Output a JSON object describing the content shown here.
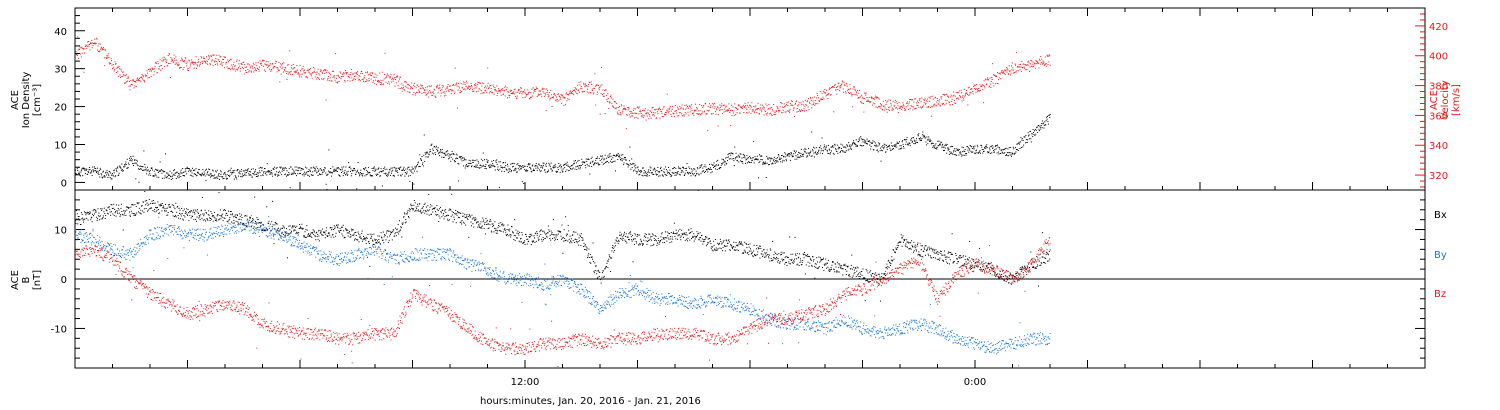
{
  "colors": {
    "black": "#000000",
    "red": "#e31a1c",
    "blue": "#1f78d1",
    "background": "#ffffff"
  },
  "x_axis": {
    "title": "hours:minutes, Jan. 20, 2016 - Jan. 21, 2016",
    "tick_labels": [
      "12:00",
      "0:00"
    ]
  },
  "chart_data": [
    {
      "type": "scatter",
      "panel": "top",
      "left_axis_label": [
        "ACE",
        "Ion Density",
        "[cm⁻³]"
      ],
      "right_axis_label": [
        "ACE",
        "Velocity",
        "[km/s]"
      ],
      "x_range_hours": [
        0,
        36
      ],
      "left_ylim": [
        -2,
        46
      ],
      "right_ylim": [
        310,
        432
      ],
      "left_ticks": [
        0,
        10,
        20,
        30,
        40
      ],
      "right_ticks": [
        320,
        340,
        360,
        380,
        400,
        420
      ],
      "series": [
        {
          "axis": "left",
          "color": "#000000",
          "x": [
            0,
            0.5,
            1.0,
            1.5,
            2.0,
            2.5,
            3.0,
            4.0,
            5.0,
            6.0,
            7.0,
            8.0,
            8.5,
            9.0,
            9.5,
            10.0,
            10.5,
            11.0,
            11.5,
            12.0,
            12.5,
            13.0,
            13.5,
            14.0,
            14.5,
            15.0,
            15.5,
            16.0,
            16.5,
            17.0,
            17.5,
            18.0,
            18.5,
            19.0,
            19.5,
            20.0,
            20.5,
            21.0,
            21.5,
            22.0,
            22.5,
            23.0,
            23.5,
            24.0,
            24.5,
            25.0,
            25.5,
            26.0
          ],
          "y": [
            3,
            3,
            2,
            6,
            3,
            2,
            3,
            2,
            3,
            3,
            3,
            3,
            3,
            3,
            9,
            7,
            5,
            5,
            4,
            4,
            4,
            4,
            5,
            6,
            7,
            3,
            3,
            3,
            3,
            4,
            7,
            6,
            6,
            7,
            8,
            9,
            9,
            11,
            9,
            10,
            12,
            10,
            8,
            9,
            9,
            8,
            13,
            17
          ]
        },
        {
          "axis": "right",
          "color": "#e31a1c",
          "x": [
            0,
            0.5,
            1.0,
            1.5,
            2.0,
            2.5,
            3.0,
            3.5,
            4.0,
            4.5,
            5.0,
            5.5,
            6.0,
            6.5,
            7.0,
            7.5,
            8.0,
            8.5,
            9.0,
            9.5,
            10.0,
            10.5,
            11.0,
            11.5,
            12.0,
            12.5,
            13.0,
            13.5,
            14.0,
            14.5,
            15.0,
            15.5,
            16.0,
            16.5,
            17.0,
            17.5,
            18.0,
            18.5,
            19.0,
            19.5,
            20.0,
            20.5,
            21.0,
            21.5,
            22.0,
            22.5,
            23.0,
            23.5,
            24.0,
            24.5,
            25.0,
            25.5,
            26.0
          ],
          "y": [
            400,
            410,
            395,
            380,
            390,
            398,
            394,
            398,
            396,
            392,
            394,
            392,
            390,
            388,
            386,
            388,
            385,
            384,
            378,
            376,
            378,
            380,
            378,
            376,
            375,
            376,
            370,
            380,
            378,
            364,
            362,
            362,
            363,
            364,
            365,
            364,
            365,
            364,
            366,
            367,
            375,
            380,
            372,
            368,
            366,
            368,
            370,
            372,
            378,
            384,
            392,
            394,
            398
          ]
        }
      ]
    },
    {
      "type": "scatter",
      "panel": "bottom",
      "left_axis_label": [
        "ACE",
        "B",
        "[nT]"
      ],
      "x_range_hours": [
        0,
        36
      ],
      "ylim": [
        -18,
        18
      ],
      "ticks": [
        -10,
        0,
        10
      ],
      "zero_line": true,
      "legend": [
        "Bx",
        "By",
        "Bz"
      ],
      "legend_placement": "right",
      "series": [
        {
          "name": "Bx",
          "color": "#000000",
          "x": [
            0,
            0.5,
            1.0,
            1.5,
            2.0,
            2.5,
            3.0,
            3.5,
            4.0,
            4.5,
            5.0,
            5.5,
            6.0,
            6.5,
            7.0,
            7.5,
            8.0,
            8.5,
            9.0,
            9.5,
            10.0,
            10.5,
            11.0,
            11.5,
            12.0,
            12.5,
            13.0,
            13.5,
            14.0,
            14.5,
            15.0,
            15.5,
            16.0,
            16.5,
            17.0,
            17.5,
            18.0,
            18.5,
            19.0,
            19.5,
            20.0,
            20.5,
            21.0,
            21.5,
            22.0,
            22.5,
            23.0,
            23.5,
            24.0,
            24.5,
            25.0,
            25.5,
            26.0
          ],
          "y": [
            12,
            13,
            14,
            14,
            15,
            14,
            13,
            13,
            13,
            12,
            11,
            10,
            10,
            9,
            10,
            9,
            8,
            9,
            15,
            14,
            13,
            12,
            11,
            10,
            8,
            9,
            9,
            8,
            0,
            9,
            8,
            8,
            9,
            9,
            7,
            7,
            6,
            5,
            4,
            4,
            3,
            2,
            1,
            0,
            8,
            6,
            5,
            4,
            3,
            2,
            0,
            3,
            5
          ]
        },
        {
          "name": "By",
          "color": "#1f78d1",
          "x": [
            0,
            0.5,
            1.0,
            1.5,
            2.0,
            2.5,
            3.0,
            3.5,
            4.0,
            4.5,
            5.0,
            5.5,
            6.0,
            6.5,
            7.0,
            7.5,
            8.0,
            8.5,
            9.0,
            9.5,
            10.0,
            10.5,
            11.0,
            11.5,
            12.0,
            12.5,
            13.0,
            13.5,
            14.0,
            14.5,
            15.0,
            15.5,
            16.0,
            16.5,
            17.0,
            17.5,
            18.0,
            18.5,
            19.0,
            19.5,
            20.0,
            20.5,
            21.0,
            21.5,
            22.0,
            22.5,
            23.0,
            23.5,
            24.0,
            24.5,
            25.0,
            25.5,
            26.0
          ],
          "y": [
            9,
            8,
            6,
            5,
            9,
            10,
            9,
            9,
            10,
            11,
            10,
            9,
            7,
            5,
            4,
            5,
            6,
            4,
            5,
            5,
            5,
            3,
            2,
            0,
            0,
            -1,
            0,
            -2,
            -6,
            -3,
            -2,
            -4,
            -4,
            -5,
            -4,
            -5,
            -6,
            -8,
            -9,
            -9,
            -10,
            -8,
            -10,
            -11,
            -10,
            -9,
            -10,
            -12,
            -13,
            -14,
            -13,
            -12,
            -12
          ]
        },
        {
          "name": "Bz",
          "color": "#e31a1c",
          "x": [
            0,
            0.5,
            1.0,
            1.5,
            2.0,
            2.5,
            3.0,
            3.5,
            4.0,
            4.5,
            5.0,
            5.5,
            6.0,
            6.5,
            7.0,
            7.5,
            8.0,
            8.5,
            9.0,
            9.5,
            10.0,
            10.5,
            11.0,
            11.5,
            12.0,
            12.5,
            13.0,
            13.5,
            14.0,
            14.5,
            15.0,
            15.5,
            16.0,
            16.5,
            17.0,
            17.5,
            18.0,
            18.5,
            19.0,
            19.5,
            20.0,
            20.5,
            21.0,
            21.5,
            22.0,
            22.5,
            23.0,
            23.5,
            24.0,
            24.5,
            25.0,
            25.5,
            26.0
          ],
          "y": [
            5,
            6,
            4,
            0,
            -3,
            -5,
            -7,
            -6,
            -5,
            -6,
            -9,
            -10,
            -11,
            -11,
            -12,
            -12,
            -11,
            -11,
            -3,
            -5,
            -7,
            -10,
            -13,
            -14,
            -14,
            -13,
            -13,
            -12,
            -13,
            -12,
            -12,
            -11,
            -11,
            -11,
            -12,
            -12,
            -10,
            -8,
            -8,
            -7,
            -6,
            -3,
            -2,
            0,
            2,
            4,
            -4,
            1,
            3,
            2,
            0,
            3,
            8
          ]
        }
      ]
    }
  ]
}
